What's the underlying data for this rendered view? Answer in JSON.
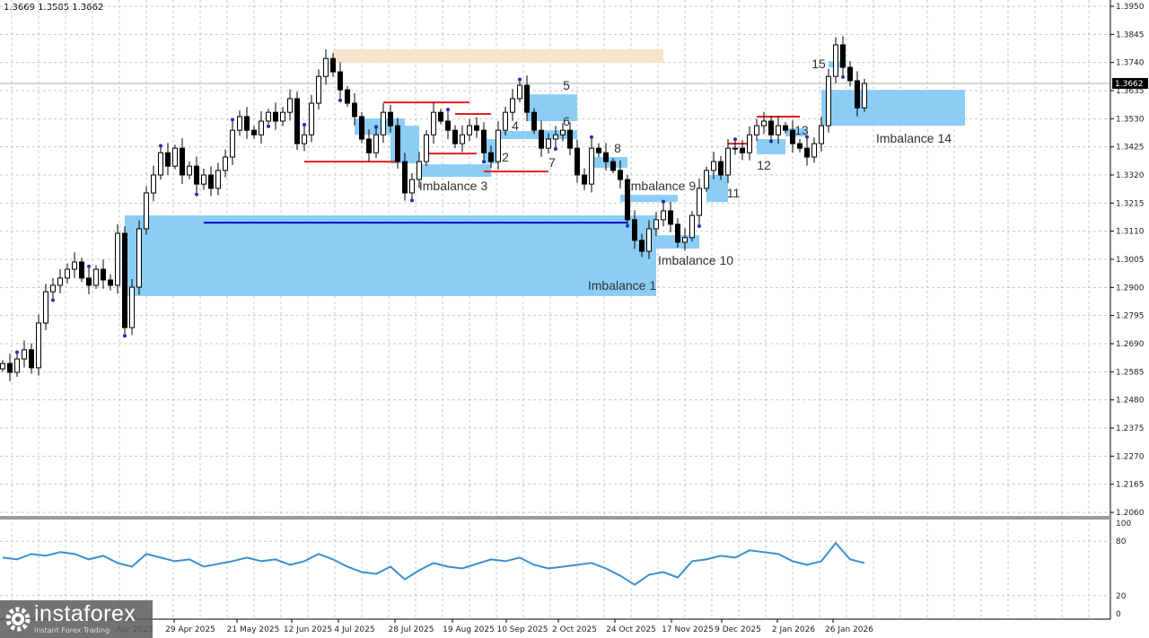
{
  "header": {
    "ohlc_text": "1.3669 1.3585 1.3662"
  },
  "logo": {
    "name": "instaforex",
    "tagline": "Instant Forex Trading"
  },
  "colors": {
    "zone_blue": "#8ccdf5",
    "zone_peach": "#f8e3cc",
    "red_line": "#e02020",
    "blue_line": "#0000cc",
    "indicator": "#3a8fd0",
    "fractal_dot": "#2a2ab0"
  },
  "chart_data": [
    {
      "type": "candlestick",
      "ylim": [
        1.206,
        1.395
      ],
      "grid": true,
      "y_ticks": [
        "1.3950",
        "1.3845",
        "1.3740",
        "1.3635",
        "1.3530",
        "1.3425",
        "1.3320",
        "1.3215",
        "1.3110",
        "1.3005",
        "1.2900",
        "1.2795",
        "1.2690",
        "1.2585",
        "1.2480",
        "1.2375",
        "1.2270",
        "1.2165",
        "1.2060"
      ],
      "x_ticks": [
        "Apr 2025",
        "29 Apr 2025",
        "21 May 2025",
        "12 Jun 2025",
        "4 Jul 2025",
        "28 Jul 2025",
        "19 Aug 2025",
        "10 Sep 2025",
        "2 Oct 2025",
        "24 Oct 2025",
        "17 Nov 2025",
        "9 Dec 2025",
        "2 Jan 2026",
        "26 Jan 2026"
      ],
      "current_price": "1.3662",
      "closes": [
        1.2616,
        1.2583,
        1.2633,
        1.2667,
        1.26,
        1.2767,
        1.2884,
        1.2908,
        1.2935,
        1.2968,
        1.2995,
        1.2935,
        1.2908,
        1.2968,
        1.2928,
        1.2908,
        1.3102,
        1.275,
        1.2901,
        1.3119,
        1.3253,
        1.332,
        1.3403,
        1.3353,
        1.342,
        1.332,
        1.3353,
        1.3286,
        1.332,
        1.327,
        1.3337,
        1.3387,
        1.3487,
        1.3538,
        1.3487,
        1.347,
        1.3521,
        1.3554,
        1.3521,
        1.3554,
        1.3605,
        1.3437,
        1.347,
        1.3588,
        1.3688,
        1.3755,
        1.3705,
        1.3638,
        1.3588,
        1.3538,
        1.3454,
        1.3403,
        1.347,
        1.3554,
        1.3504,
        1.337,
        1.3253,
        1.3303,
        1.337,
        1.347,
        1.3554,
        1.3521,
        1.3487,
        1.3437,
        1.347,
        1.3504,
        1.3487,
        1.3403,
        1.337,
        1.3487,
        1.3554,
        1.3605,
        1.3655,
        1.3554,
        1.3487,
        1.342,
        1.3454,
        1.347,
        1.3487,
        1.342,
        1.332,
        1.3286,
        1.342,
        1.3403,
        1.337,
        1.3337,
        1.3303,
        1.3153,
        1.3076,
        1.3035,
        1.3119,
        1.3153,
        1.3186,
        1.3136,
        1.3069,
        1.3086,
        1.3169,
        1.327,
        1.3337,
        1.337,
        1.332,
        1.342,
        1.342,
        1.3403,
        1.347,
        1.3504,
        1.3521,
        1.347,
        1.3504,
        1.3487,
        1.3437,
        1.342,
        1.3387,
        1.3437,
        1.3504,
        1.3688,
        1.3806,
        1.3722,
        1.3672,
        1.3571,
        1.3662
      ],
      "zones": [
        {
          "label": "Imbalance 1",
          "from_bar": 17,
          "to_bar": 91,
          "top": 1.3169,
          "bottom": 1.2868,
          "color": "blue"
        },
        {
          "label": "",
          "from_bar": 46,
          "to_bar": 92,
          "top": 1.3789,
          "bottom": 1.3739,
          "color": "peach"
        },
        {
          "label": "",
          "from_bar": 49,
          "to_bar": 56,
          "top": 1.3531,
          "bottom": 1.347,
          "color": "blue"
        },
        {
          "label": "",
          "from_bar": 54,
          "to_bar": 58,
          "top": 1.3504,
          "bottom": 1.3363,
          "color": "blue"
        },
        {
          "label": "Imbalance 3",
          "from_bar": 58,
          "to_bar": 68,
          "top": 1.336,
          "bottom": 1.3313,
          "color": "blue"
        },
        {
          "label": "2",
          "from_bar": 67,
          "to_bar": 69,
          "top": 1.3454,
          "bottom": 1.3363,
          "color": "blue"
        },
        {
          "label": "4",
          "from_bar": 69,
          "to_bar": 77,
          "top": 1.3484,
          "bottom": 1.3454,
          "color": "blue"
        },
        {
          "label": "5",
          "from_bar": 73,
          "to_bar": 80,
          "top": 1.3621,
          "bottom": 1.3521,
          "color": "blue"
        },
        {
          "label": "6",
          "from_bar": 75,
          "to_bar": 80,
          "top": 1.3487,
          "bottom": 1.3454,
          "color": "blue"
        },
        {
          "label": "7",
          "from_bar": 75,
          "to_bar": 75,
          "top": 1.34,
          "bottom": 1.34,
          "color": "none"
        },
        {
          "label": "8",
          "from_bar": 82,
          "to_bar": 87,
          "top": 1.3387,
          "bottom": 1.3347,
          "color": "blue"
        },
        {
          "label": "Imbalance 9",
          "from_bar": 86,
          "to_bar": 94,
          "top": 1.3246,
          "bottom": 1.3219,
          "color": "blue"
        },
        {
          "label": "Imbalance 10",
          "from_bar": 91,
          "to_bar": 97,
          "top": 1.3095,
          "bottom": 1.3045,
          "color": "blue"
        },
        {
          "label": "11",
          "from_bar": 98,
          "to_bar": 101,
          "top": 1.332,
          "bottom": 1.3219,
          "color": "blue"
        },
        {
          "label": "12",
          "from_bar": 105,
          "to_bar": 109,
          "top": 1.3454,
          "bottom": 1.3397,
          "color": "blue"
        },
        {
          "label": "13",
          "from_bar": 109,
          "to_bar": 112,
          "top": 1.3494,
          "bottom": 1.3464,
          "color": "blue"
        },
        {
          "label": "15",
          "from_bar": 115,
          "to_bar": 117,
          "top": 1.3745,
          "bottom": 1.3722,
          "color": "blue"
        },
        {
          "label": "Imbalance 14",
          "from_bar": 114,
          "to_bar": 134,
          "top": 1.3638,
          "bottom": 1.3504,
          "color": "blue"
        }
      ],
      "levels": [
        {
          "price": 1.337,
          "from_bar": 42,
          "to_bar": 55,
          "color": "red"
        },
        {
          "price": 1.3591,
          "from_bar": 53,
          "to_bar": 65,
          "color": "red"
        },
        {
          "price": 1.3548,
          "from_bar": 63,
          "to_bar": 68,
          "color": "red"
        },
        {
          "price": 1.34,
          "from_bar": 59,
          "to_bar": 66,
          "color": "red"
        },
        {
          "price": 1.3333,
          "from_bar": 67,
          "to_bar": 76,
          "color": "red"
        },
        {
          "price": 1.3437,
          "from_bar": 101,
          "to_bar": 104,
          "color": "red"
        },
        {
          "price": 1.3538,
          "from_bar": 105,
          "to_bar": 111,
          "color": "red"
        },
        {
          "price": 1.3142,
          "from_bar": 28,
          "to_bar": 87,
          "color": "blue"
        }
      ]
    },
    {
      "type": "line",
      "ylim": [
        0,
        100
      ],
      "y_ticks": [
        "100",
        "80",
        "20",
        "0"
      ],
      "values": [
        62,
        60,
        66,
        64,
        68,
        66,
        60,
        64,
        56,
        52,
        66,
        62,
        58,
        60,
        52,
        55,
        58,
        62,
        58,
        60,
        54,
        58,
        66,
        60,
        52,
        46,
        44,
        52,
        38,
        48,
        56,
        52,
        50,
        55,
        60,
        58,
        62,
        54,
        50,
        52,
        54,
        56,
        50,
        42,
        32,
        43,
        46,
        40,
        58,
        60,
        64,
        62,
        70,
        68,
        66,
        58,
        54,
        58,
        78,
        60,
        56
      ]
    }
  ]
}
